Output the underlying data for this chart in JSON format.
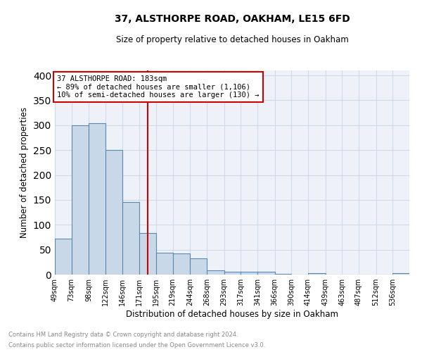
{
  "title": "37, ALSTHORPE ROAD, OAKHAM, LE15 6FD",
  "subtitle": "Size of property relative to detached houses in Oakham",
  "xlabel": "Distribution of detached houses by size in Oakham",
  "ylabel": "Number of detached properties",
  "bar_labels": [
    "49sqm",
    "73sqm",
    "98sqm",
    "122sqm",
    "146sqm",
    "171sqm",
    "195sqm",
    "219sqm",
    "244sqm",
    "268sqm",
    "293sqm",
    "317sqm",
    "341sqm",
    "366sqm",
    "390sqm",
    "414sqm",
    "439sqm",
    "463sqm",
    "487sqm",
    "512sqm",
    "536sqm"
  ],
  "bar_values": [
    72,
    300,
    304,
    250,
    145,
    83,
    44,
    43,
    32,
    8,
    5,
    6,
    5,
    2,
    0,
    3,
    0,
    0,
    0,
    0,
    3
  ],
  "bar_color": "#c8d8e8",
  "bar_edge_color": "#5a8ab0",
  "property_line_x": 183,
  "annotation_line1": "37 ALSTHORPE ROAD: 183sqm",
  "annotation_line2": "← 89% of detached houses are smaller (1,106)",
  "annotation_line3": "10% of semi-detached houses are larger (130) →",
  "annotation_box_color": "#ffffff",
  "annotation_box_edge": "#cc0000",
  "vline_color": "#cc0000",
  "grid_color": "#d0d8e8",
  "bg_color": "#eef2f8",
  "ylim": [
    0,
    410
  ],
  "yticks": [
    0,
    50,
    100,
    150,
    200,
    250,
    300,
    350,
    400
  ],
  "footnote1": "Contains HM Land Registry data © Crown copyright and database right 2024.",
  "footnote2": "Contains public sector information licensed under the Open Government Licence v3.0.",
  "bin_edges": [
    49,
    73,
    98,
    122,
    146,
    171,
    195,
    219,
    244,
    268,
    293,
    317,
    341,
    366,
    390,
    414,
    439,
    463,
    487,
    512,
    536,
    560
  ]
}
